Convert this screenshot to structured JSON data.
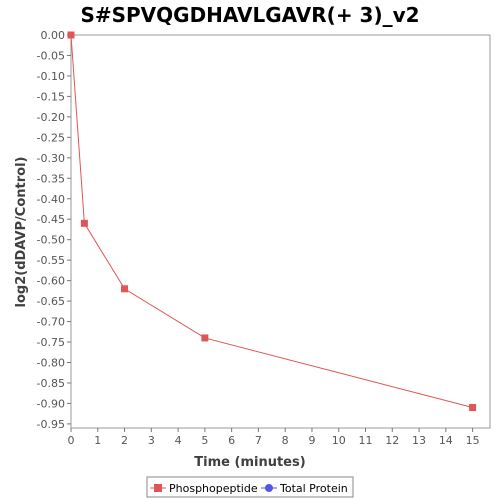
{
  "chart_data": {
    "type": "line",
    "title": "S#SPVQGDHAVLGAVR(+ 3)_v2",
    "xlabel": "Time (minutes)",
    "ylabel": "log2(dDAVP/Control)",
    "xlim": [
      0,
      15.65
    ],
    "ylim": [
      -0.96,
      0.0
    ],
    "x_ticks": [
      "0",
      "1",
      "2",
      "3",
      "4",
      "5",
      "6",
      "7",
      "8",
      "9",
      "10",
      "11",
      "12",
      "13",
      "14",
      "15"
    ],
    "y_ticks": [
      "0.00",
      "-0.05",
      "-0.10",
      "-0.15",
      "-0.20",
      "-0.25",
      "-0.30",
      "-0.35",
      "-0.40",
      "-0.45",
      "-0.50",
      "-0.55",
      "-0.60",
      "-0.65",
      "-0.70",
      "-0.75",
      "-0.80",
      "-0.85",
      "-0.90",
      "-0.95"
    ],
    "grid": false,
    "legend_position": "bottom",
    "series": [
      {
        "name": "Phosphopeptide",
        "color": "#e05555",
        "marker": "square",
        "points": [
          {
            "x": 0,
            "y": 0.0
          },
          {
            "x": 0.5,
            "y": -0.46
          },
          {
            "x": 2,
            "y": -0.62
          },
          {
            "x": 5,
            "y": -0.74
          },
          {
            "x": 15,
            "y": -0.91
          }
        ]
      },
      {
        "name": "Total Protein",
        "color": "#5555e6",
        "marker": "circle",
        "points": []
      }
    ]
  }
}
